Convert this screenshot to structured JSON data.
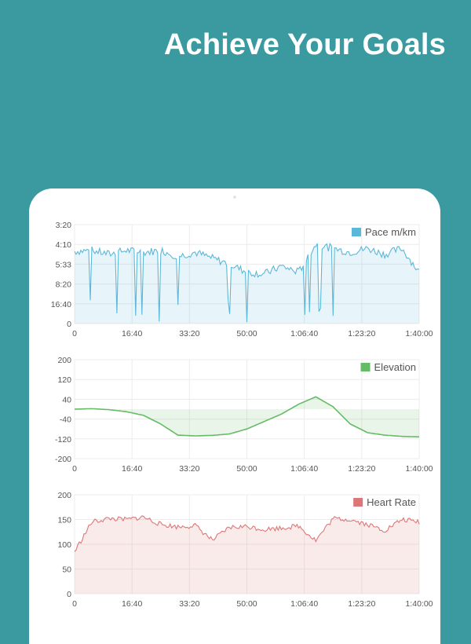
{
  "header": {
    "title": "Achieve Your Goals"
  },
  "colors": {
    "background": "#3a9aa0",
    "pace": "#5bb8d9",
    "elevation": "#66bb66",
    "heart_rate": "#dd7777"
  },
  "chart_data": [
    {
      "type": "line",
      "title": "",
      "legend": "Pace m/km",
      "legend_position": "top-right",
      "x_ticks": [
        "0",
        "16:40",
        "33:20",
        "50:00",
        "1:06:40",
        "1:23:20",
        "1:40:00"
      ],
      "y_ticks": [
        "3:20",
        "4:10",
        "5:33",
        "8:20",
        "16:40",
        "0"
      ],
      "x": [
        0,
        5,
        10,
        15,
        20,
        25,
        30,
        35,
        40,
        45,
        50,
        55,
        60,
        65,
        70,
        75,
        80,
        85,
        90,
        95,
        100
      ],
      "values": [
        0.73,
        0.74,
        0.7,
        0.74,
        0.72,
        0.74,
        0.68,
        0.72,
        0.66,
        0.6,
        0.52,
        0.5,
        0.58,
        0.52,
        0.8,
        0.76,
        0.72,
        0.76,
        0.7,
        0.76,
        0.52
      ],
      "ylim": [
        0,
        1
      ]
    },
    {
      "type": "area",
      "title": "",
      "legend": "Elevation",
      "legend_position": "top-right",
      "x_ticks": [
        "0",
        "16:40",
        "33:20",
        "50:00",
        "1:06:40",
        "1:23:20",
        "1:40:00"
      ],
      "y_ticks": [
        "200",
        "120",
        "40",
        "-40",
        "-120",
        "-200"
      ],
      "x": [
        0,
        5,
        10,
        15,
        20,
        25,
        30,
        35,
        40,
        45,
        50,
        55,
        60,
        65,
        70,
        75,
        80,
        85,
        90,
        95,
        100
      ],
      "values": [
        0,
        2,
        -2,
        -10,
        -25,
        -60,
        -105,
        -108,
        -106,
        -100,
        -80,
        -50,
        -20,
        20,
        50,
        10,
        -60,
        -95,
        -105,
        -110,
        -112
      ],
      "ylim": [
        -200,
        200
      ]
    },
    {
      "type": "area",
      "title": "",
      "legend": "Heart Rate",
      "legend_position": "top-right",
      "x_ticks": [
        "0",
        "16:40",
        "33:20",
        "50:00",
        "1:06:40",
        "1:23:20",
        "1:40:00"
      ],
      "y_ticks": [
        "200",
        "150",
        "100",
        "50",
        "0"
      ],
      "x": [
        0,
        5,
        10,
        15,
        20,
        25,
        30,
        35,
        40,
        45,
        50,
        55,
        60,
        65,
        70,
        75,
        80,
        85,
        90,
        95,
        100
      ],
      "values": [
        85,
        145,
        152,
        150,
        155,
        140,
        135,
        138,
        108,
        134,
        136,
        130,
        133,
        137,
        108,
        152,
        150,
        140,
        128,
        150,
        145
      ],
      "ylim": [
        0,
        200
      ]
    }
  ]
}
